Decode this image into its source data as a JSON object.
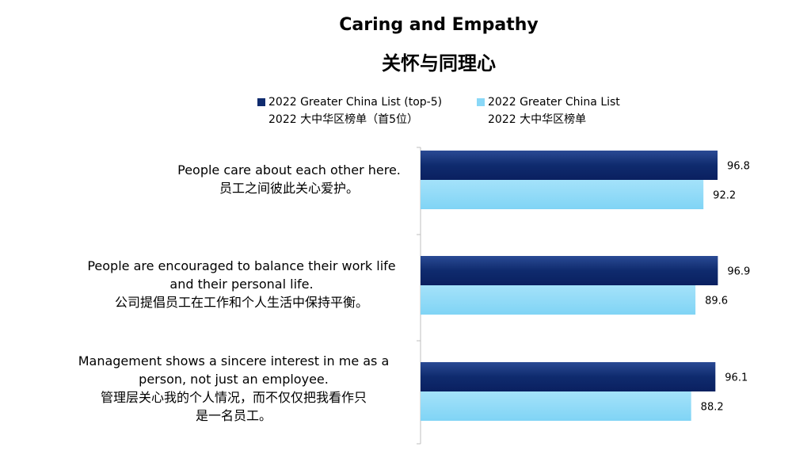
{
  "chart_data": {
    "type": "bar",
    "orientation": "horizontal",
    "title": "Caring and Empathy",
    "subtitle": "关怀与同理心",
    "legend_placement": "top",
    "categories": [
      {
        "en_lines": [
          "People care about each other here."
        ],
        "zh_lines": [
          "员工之间彼此关心爱护。"
        ]
      },
      {
        "en_lines": [
          "People are encouraged to balance their work life",
          "and their personal life."
        ],
        "zh_lines": [
          "公司提倡员工在工作和个人生活中保持平衡。"
        ]
      },
      {
        "en_lines": [
          "Management shows a sincere interest in me as a",
          "person, not just an employee."
        ],
        "zh_lines": [
          "管理层关心我的个人情况，而不仅仅把我看作只",
          "是一名员工。"
        ]
      }
    ],
    "series": [
      {
        "name": "2022 Greater China List (top-5)",
        "name_zh": "2022 大中华区榜单（首5位）",
        "color": "#0f2b6e",
        "values": [
          96.8,
          96.9,
          96.1
        ]
      },
      {
        "name": "2022 Greater China List",
        "name_zh": "2022 大中华区榜单",
        "color": "#8ad8f7",
        "values": [
          92.2,
          89.6,
          88.2
        ]
      }
    ],
    "xlim": [
      0,
      100
    ],
    "grid": false
  }
}
